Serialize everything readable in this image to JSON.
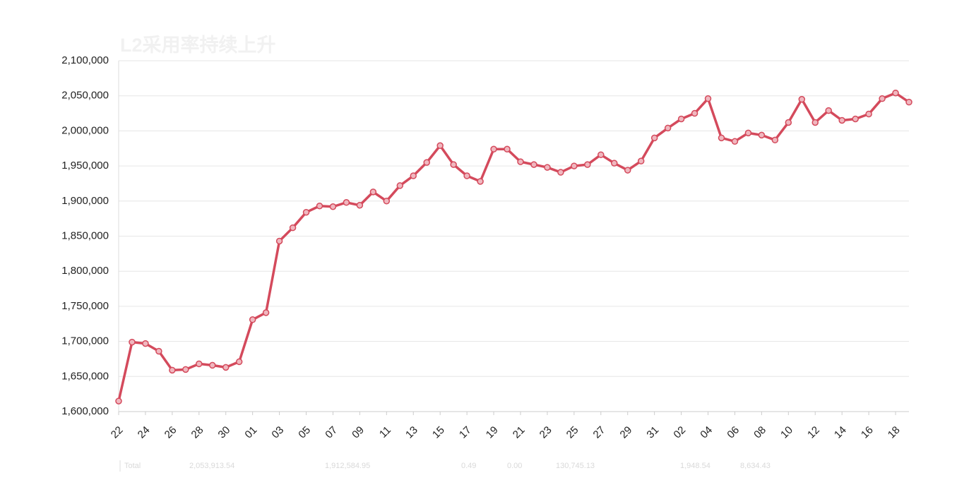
{
  "chart_data": {
    "type": "line",
    "title": "L2采用率持续上升",
    "categories": [
      "22",
      null,
      "24",
      null,
      "26",
      null,
      "28",
      null,
      "30",
      null,
      "01",
      null,
      "03",
      null,
      "05",
      null,
      "07",
      null,
      "09",
      null,
      "11",
      null,
      "13",
      null,
      "15",
      null,
      "17",
      null,
      "19",
      null,
      "21",
      null,
      "23",
      null,
      "25",
      null,
      "27",
      null,
      "29",
      null,
      "31",
      null,
      "02",
      null,
      "04",
      null,
      "06",
      null,
      "08",
      null,
      "10",
      null,
      "12",
      null,
      "14",
      null,
      "16",
      null,
      "18",
      null
    ],
    "series": [
      {
        "name": "Total",
        "color": "#d44a5c",
        "values": [
          1615000,
          1699000,
          1697000,
          1686000,
          1659000,
          1660000,
          1668000,
          1666000,
          1663000,
          1671000,
          1731000,
          1741000,
          1843000,
          1862000,
          1884000,
          1893000,
          1892000,
          1898000,
          1894000,
          1913000,
          1900000,
          1922000,
          1936000,
          1955000,
          1979000,
          1952000,
          1936000,
          1928000,
          1974000,
          1974000,
          1956000,
          1952000,
          1948000,
          1941000,
          1950000,
          1952000,
          1966000,
          1954000,
          1944000,
          1957000,
          1990000,
          2004000,
          2017000,
          2025000,
          2046000,
          1990000,
          1985000,
          1997000,
          1994000,
          1987000,
          2012000,
          2045000,
          2012000,
          2029000,
          2015000,
          2017000,
          2024000,
          2046000,
          2054000,
          2041000
        ]
      }
    ],
    "ylim": [
      1600000,
      2100000
    ],
    "yticks": [
      {
        "value": 1600000,
        "label": "1,600,000"
      },
      {
        "value": 1650000,
        "label": "1,650,000"
      },
      {
        "value": 1700000,
        "label": "1,700,000"
      },
      {
        "value": 1750000,
        "label": "1,750,000"
      },
      {
        "value": 1800000,
        "label": "1,800,000"
      },
      {
        "value": 1850000,
        "label": "1,850,000"
      },
      {
        "value": 1900000,
        "label": "1,900,000"
      },
      {
        "value": 1950000,
        "label": "1,950,000"
      },
      {
        "value": 2000000,
        "label": "2,000,000"
      },
      {
        "value": 2050000,
        "label": "2,050,000"
      },
      {
        "value": 2100000,
        "label": "2,100,000"
      }
    ],
    "grid": true,
    "footer": [
      "Total",
      "2,053,913.54",
      "1,912,584.95",
      "0.49",
      "0.00",
      "130,745.13",
      "1,948.54",
      "8,634.43"
    ]
  }
}
